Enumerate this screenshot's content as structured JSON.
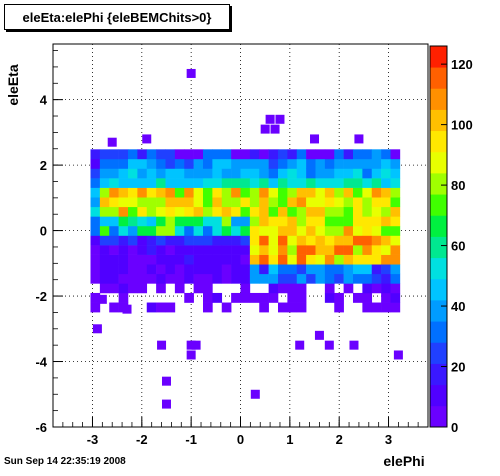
{
  "chart_data": {
    "type": "heatmap",
    "title": "eleEta:elePhi {eleBEMChits>0}",
    "xlabel": "elePhi",
    "ylabel": "eleEta",
    "xlim": [
      -3.8,
      3.8
    ],
    "ylim": [
      -6,
      5.7
    ],
    "x_ticks": [
      "-3",
      "-2",
      "-1",
      "0",
      "1",
      "2",
      "3"
    ],
    "y_ticks": [
      "-6",
      "-4",
      "-2",
      "0",
      "2",
      "4"
    ],
    "z_range": [
      0,
      126
    ],
    "z_ticks": [
      "0",
      "20",
      "40",
      "60",
      "80",
      "100",
      "120"
    ],
    "grid": true,
    "legend": "color scale on right",
    "bins": {
      "nx": 40,
      "ny": 40,
      "x_range": [
        -3.8,
        3.8
      ],
      "y_range": [
        -6,
        5.7
      ]
    },
    "outliers": [
      [
        -1.0,
        4.8
      ],
      [
        -2.8,
        -2.1
      ],
      [
        -2.3,
        -2.4
      ],
      [
        -2.9,
        -3.0
      ],
      [
        -1.6,
        -3.5
      ],
      [
        -1.0,
        -3.5
      ],
      [
        -0.9,
        -3.5
      ],
      [
        1.2,
        -3.5
      ],
      [
        1.8,
        -3.5
      ],
      [
        2.3,
        -3.5
      ],
      [
        1.6,
        -3.2
      ],
      [
        -1.0,
        -3.8
      ],
      [
        3.2,
        -3.8
      ],
      [
        -1.5,
        -4.6
      ],
      [
        0.3,
        -5.0
      ],
      [
        -1.5,
        -5.3
      ],
      [
        0.5,
        3.1
      ],
      [
        0.7,
        3.1
      ],
      [
        0.6,
        3.4
      ],
      [
        0.8,
        3.4
      ],
      [
        -2.6,
        2.7
      ],
      [
        -1.9,
        2.8
      ],
      [
        1.5,
        2.8
      ],
      [
        2.4,
        2.8
      ]
    ]
  },
  "timestamp": "Sun Sep 14 22:35:19 2008"
}
